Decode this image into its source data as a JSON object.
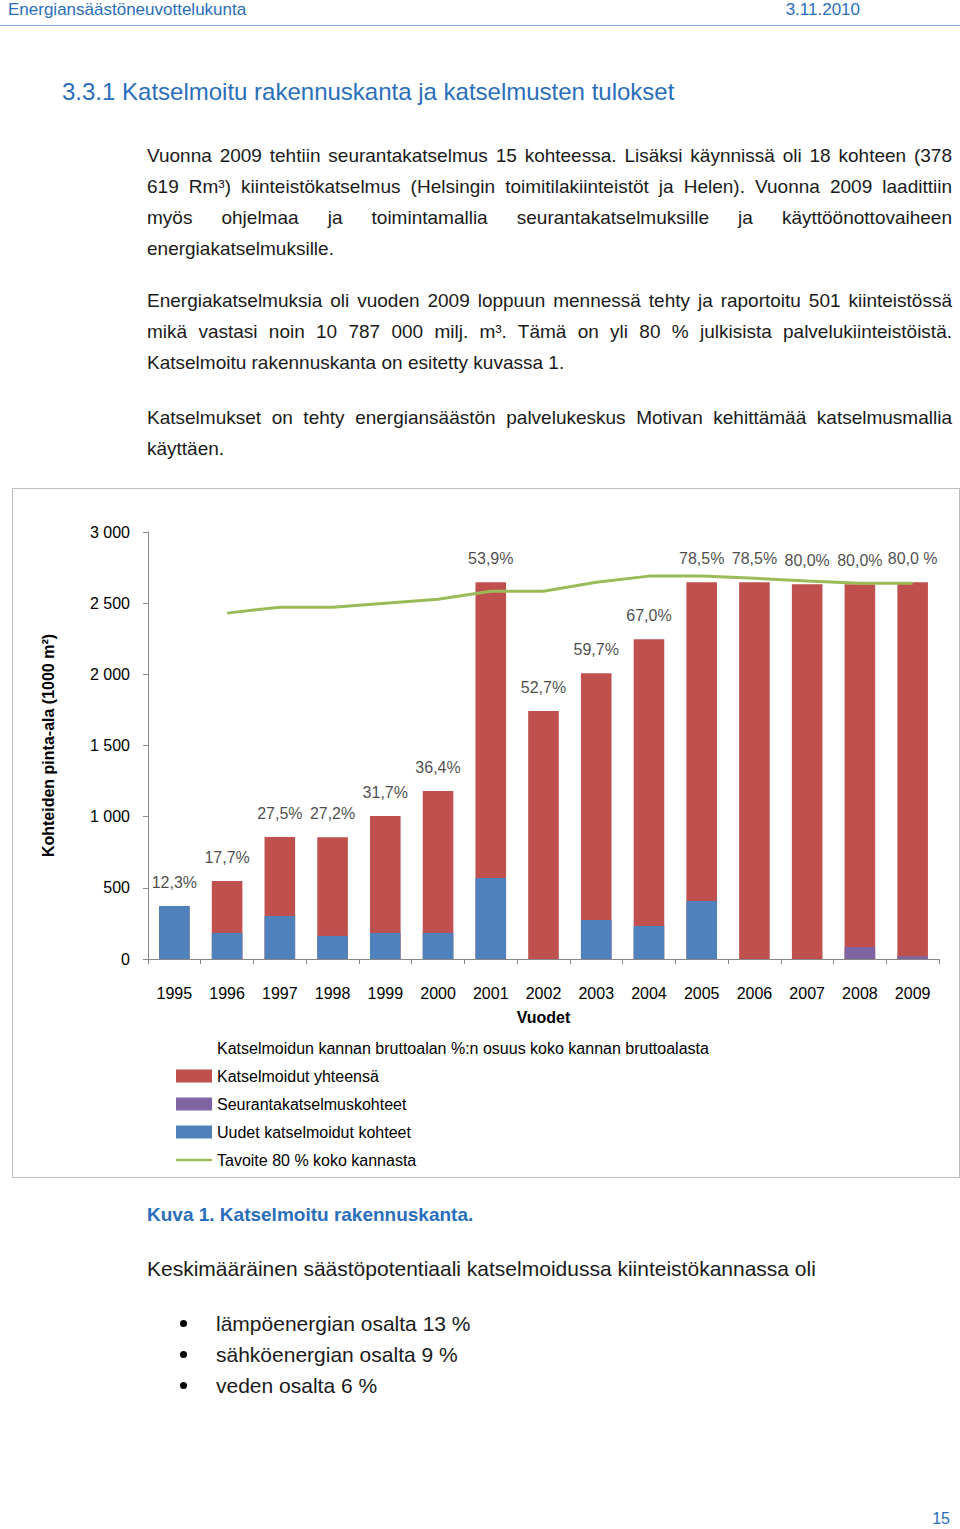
{
  "header": {
    "left": "Energiansäästöneuvottelukunta",
    "right": "3.11.2010"
  },
  "heading": "3.3.1 Katselmoitu rakennuskanta ja katselmusten tulokset",
  "paragraphs": [
    "Vuonna 2009 tehtiin seurantakatselmus 15 kohteessa. Lisäksi käynnissä oli 18 kohteen (378 619 Rm³) kiinteistökatselmus (Helsingin toimitilakiinteistöt ja Helen). Vuonna 2009 laadittiin myös ohjelmaa ja toimintamallia seurantakatselmuksille ja käyttöönottovaiheen energiakatselmuksille.",
    "Energiakatselmuksia oli vuoden 2009 loppuun mennessä tehty ja raportoitu 501 kiinteistössä mikä vastasi noin 10 787 000 milj. m³. Tämä on yli 80 % julkisista palvelukiinteistöistä. Katselmoitu rakennuskanta on esitetty kuvassa 1.",
    "Katselmukset on tehty energiansäästön palvelukeskus Motivan kehittämää katselmusmallia käyttäen."
  ],
  "chart_data": {
    "type": "bar",
    "x_label": "Vuodet",
    "y_label": "Kohteiden pinta-ala (1000 m²)",
    "categories": [
      "1995",
      "1996",
      "1997",
      "1998",
      "1999",
      "2000",
      "2001",
      "2002",
      "2003",
      "2004",
      "2005",
      "2006",
      "2007",
      "2008",
      "2009"
    ],
    "ylim": [
      0,
      3000
    ],
    "yticks": [
      0,
      500,
      {
        "value": 1000,
        "label": "1 000"
      },
      {
        "value": 1500,
        "label": "1 500"
      },
      {
        "value": 2000,
        "label": "2 000"
      },
      {
        "value": 2500,
        "label": "2 500"
      },
      {
        "value": 3000,
        "label": "3 000"
      }
    ],
    "grid": false,
    "legend": "bottom",
    "data_labels": true,
    "series": [
      {
        "name": "Katselmoidun kannan bruttoalan %:n osuus koko kannan bruttoalasta",
        "type": "scatter",
        "marker": "none",
        "values": [
          12.3,
          17.7,
          27.5,
          27.2,
          31.7,
          36.4,
          53.9,
          52.7,
          59.7,
          67.0,
          78.5,
          78.5,
          80.0,
          80.0,
          80.0
        ],
        "value_labels": [
          "12,3%",
          "17,7%",
          "27,5%",
          "27,2%",
          "31,7%",
          "36,4%",
          "53,9%",
          "52,7%",
          "59,7%",
          "67,0%",
          "78,5%",
          "78,5%",
          "80,0%",
          "80,0%",
          "80,0 %"
        ]
      },
      {
        "name": "Katselmoidut yhteensä",
        "type": "bar",
        "color": "#c0504d",
        "values": [
          370,
          548,
          857,
          855,
          1004,
          1180,
          2647,
          1742,
          2008,
          2247,
          2647,
          2647,
          2633,
          2633,
          2647
        ]
      },
      {
        "name": "Seurantakatselmuskohteet",
        "type": "bar",
        "color": "#8064a2",
        "values": [
          null,
          null,
          null,
          null,
          null,
          null,
          null,
          null,
          null,
          null,
          null,
          null,
          null,
          84,
          20
        ]
      },
      {
        "name": "Uudet katselmoidut kohteet",
        "type": "bar",
        "color": "#4f81bd",
        "values": [
          372,
          183,
          302,
          162,
          183,
          183,
          569,
          null,
          274,
          232,
          407,
          null,
          null,
          null,
          null
        ]
      },
      {
        "name": "Tavoite 80 % koko kannasta",
        "type": "line",
        "color": "#9bbb59",
        "values": [
          null,
          2430,
          2472,
          2472,
          2500,
          2528,
          2584,
          2584,
          2647,
          2690,
          2690,
          2675,
          2655,
          2640,
          2640
        ]
      }
    ]
  },
  "caption": "Kuva 1. Katselmoitu rakennuskanta.",
  "list_intro": "Keskimääräinen säästöpotentiaali katselmoidussa kiinteistökannassa oli",
  "bullets": [
    "lämpöenergian osalta 13 %",
    "sähköenergian osalta 9 %",
    "veden osalta 6 %"
  ],
  "page_number": "15"
}
